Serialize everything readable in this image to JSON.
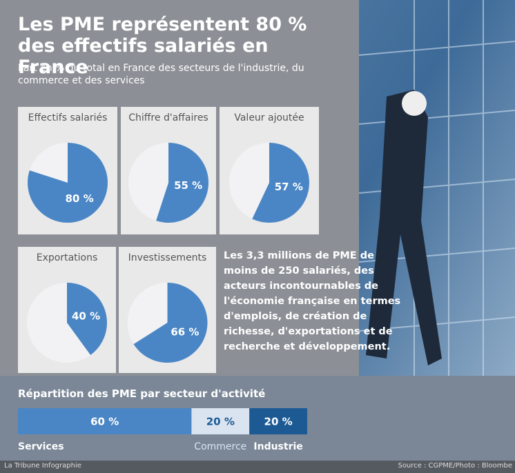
{
  "title": "Les PME représentent 80 % des effectifs salariés en France",
  "subtitle": "Part en % du total en France des secteurs de l'industrie, du commerce et des services",
  "note": "Les 3,3 millions de PME de moins de 250 salariés, des acteurs incontournables de l'économie française en termes d'emplois, de création de richesse, d'exportations et de recherche et développement.",
  "credit": "La Tribune Infographie",
  "source": "Source : CGPME/Photo : Bloombe",
  "chart_data": [
    {
      "type": "pie",
      "title": "Effectifs salariés",
      "values": [
        80
      ],
      "value_labels": [
        "80 %"
      ],
      "color": "#4a86c5"
    },
    {
      "type": "pie",
      "title": "Chiffre d'affaires",
      "values": [
        55
      ],
      "value_labels": [
        "55 %"
      ],
      "color": "#4a86c5"
    },
    {
      "type": "pie",
      "title": "Valeur ajoutée",
      "values": [
        57
      ],
      "value_labels": [
        "57 %"
      ],
      "color": "#4a86c5"
    },
    {
      "type": "pie",
      "title": "Exportations",
      "values": [
        40
      ],
      "value_labels": [
        "40 %"
      ],
      "color": "#4a86c5"
    },
    {
      "type": "pie",
      "title": "Investissements",
      "values": [
        66
      ],
      "value_labels": [
        "66 %"
      ],
      "color": "#4a86c5"
    },
    {
      "type": "stacked_bar",
      "title": "Répartition des PME par secteur d'activité",
      "xlim": [
        0,
        100
      ],
      "series": [
        {
          "name": "Services",
          "values": [
            60
          ],
          "value_labels": [
            "60 %"
          ],
          "color": "#4a86c5"
        },
        {
          "name": "Commerce",
          "values": [
            20
          ],
          "value_labels": [
            "20 %"
          ],
          "color": "#d9e4f0"
        },
        {
          "name": "Industrie",
          "values": [
            20
          ],
          "value_labels": [
            "20 %"
          ],
          "color": "#1d5a94"
        }
      ]
    }
  ]
}
